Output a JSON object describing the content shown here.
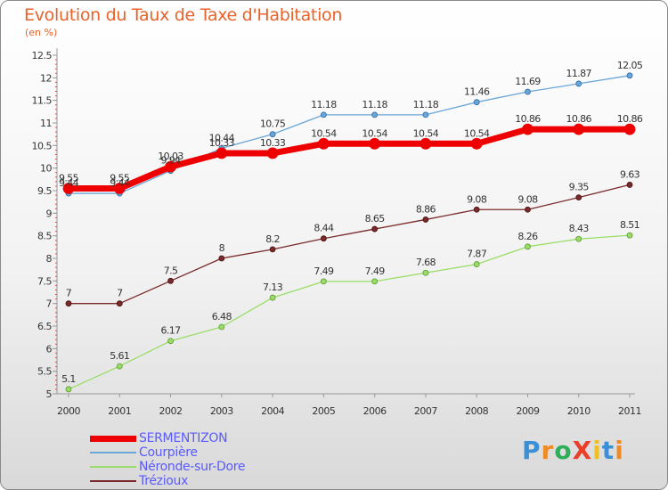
{
  "title": "Evolution du Taux de Taxe d'Habitation",
  "unit_label": "(en %)",
  "logo": {
    "text": "ProXiti",
    "letters": [
      "P",
      "r",
      "o",
      "X",
      "i",
      "t",
      "i"
    ],
    "colors": [
      "#3a8fd6",
      "#f08a24",
      "#2fae5a",
      "#e83e2a",
      "#f0c020",
      "#3a8fd6",
      "#f08a24"
    ]
  },
  "chart_data": {
    "type": "line",
    "title": "Evolution du Taux de Taxe d'Habitation",
    "ylabel": "(en %)",
    "x": [
      "2000",
      "2001",
      "2002",
      "2003",
      "2004",
      "2005",
      "2006",
      "2007",
      "2008",
      "2009",
      "2010",
      "2011"
    ],
    "ylim": [
      5,
      12.5
    ],
    "yticks": [
      "5",
      "5.5",
      "6",
      "6.5",
      "7",
      "7.5",
      "8",
      "8.5",
      "9",
      "9.5",
      "10",
      "10.5",
      "11",
      "11.5",
      "12",
      "12.5"
    ],
    "grid": false,
    "legend_position": "bottom-left",
    "series": [
      {
        "name": "SERMENTIZON",
        "color": "#ee0000",
        "values": [
          9.55,
          9.55,
          10.03,
          10.33,
          10.33,
          10.54,
          10.54,
          10.54,
          10.54,
          10.86,
          10.86,
          10.86
        ],
        "labels": [
          "9.55",
          "9.55",
          "10.03",
          "10.33",
          "10.33",
          "10.54",
          "10.54",
          "10.54",
          "10.54",
          "10.86",
          "10.86",
          "10.86"
        ]
      },
      {
        "name": "Courpière",
        "color": "#6aa6d8",
        "values": [
          9.44,
          9.44,
          9.94,
          10.44,
          10.75,
          11.18,
          11.18,
          11.18,
          11.46,
          11.69,
          11.87,
          12.05
        ],
        "labels": [
          "9.44",
          "9.44",
          "9.94",
          "10.44",
          "10.75",
          "11.18",
          "11.18",
          "11.18",
          "11.46",
          "11.69",
          "11.87",
          "12.05"
        ]
      },
      {
        "name": "Néronde-sur-Dore",
        "color": "#99dd66",
        "values": [
          5.1,
          5.61,
          6.17,
          6.48,
          7.13,
          7.49,
          7.49,
          7.68,
          7.87,
          8.26,
          8.43,
          8.51
        ],
        "labels": [
          "5.1",
          "5.61",
          "6.17",
          "6.48",
          "7.13",
          "7.49",
          "7.49",
          "7.68",
          "7.87",
          "8.26",
          "8.43",
          "8.51"
        ]
      },
      {
        "name": "Trézioux",
        "color": "#7a2a2a",
        "values": [
          7,
          7,
          7.5,
          8,
          8.2,
          8.44,
          8.65,
          8.86,
          9.08,
          9.08,
          9.35,
          9.63
        ],
        "labels": [
          "7",
          "7",
          "7.5",
          "8",
          "8.2",
          "8.44",
          "8.65",
          "8.86",
          "9.08",
          "9.08",
          "9.35",
          "9.63"
        ]
      }
    ]
  }
}
